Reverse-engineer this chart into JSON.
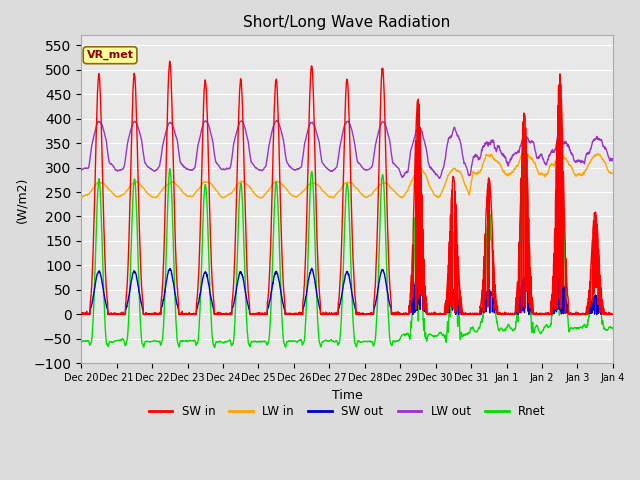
{
  "title": "Short/Long Wave Radiation",
  "ylabel": "(W/m2)",
  "xlabel": "Time",
  "annotation": "VR_met",
  "ylim": [
    -100,
    570
  ],
  "yticks": [
    -100,
    -50,
    0,
    50,
    100,
    150,
    200,
    250,
    300,
    350,
    400,
    450,
    500,
    550
  ],
  "background_color": "#dcdcdc",
  "plot_background": "#e8e8e8",
  "colors": {
    "SW_in": "#ff0000",
    "LW_in": "#ffa500",
    "SW_out": "#0000cc",
    "LW_out": "#9933cc",
    "Rnet": "#00dd00"
  },
  "legend_labels": [
    "SW in",
    "LW in",
    "SW out",
    "LW out",
    "Rnet"
  ],
  "x_tick_labels": [
    "Dec 20",
    "Dec 21",
    "Dec 22",
    "Dec 23",
    "Dec 24",
    "Dec 25",
    "Dec 26",
    "Dec 27",
    "Dec 28",
    "Dec 29",
    "Dec 30",
    "Dec 31",
    "Jan 1",
    "Jan 2",
    "Jan 3",
    "Jan 4"
  ],
  "n_days": 15,
  "pts_per_day": 144,
  "line_width": 1.0
}
